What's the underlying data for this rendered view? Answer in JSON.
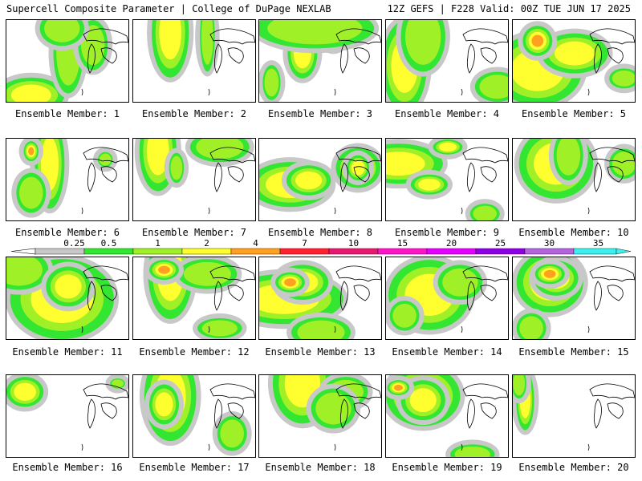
{
  "header": {
    "title": "Supercell Composite Parameter | College of DuPage NEXLAB",
    "run_info": "12Z GEFS | F228 Valid: 00Z TUE JUN 17 2025"
  },
  "legend": {
    "ticks": [
      "0.25",
      "0.5",
      "1",
      "2",
      "4",
      "7",
      "10",
      "15",
      "20",
      "25",
      "30",
      "35"
    ],
    "colors": [
      "#c8c8c8",
      "#32e632",
      "#a0f028",
      "#ffff30",
      "#ffa020",
      "#ff2030",
      "#e6196e",
      "#ff14c8",
      "#e600ff",
      "#8c00e6",
      "#b464dc",
      "#3cf0f0"
    ]
  },
  "members": [
    {
      "label": "Ensemble Member: 1"
    },
    {
      "label": "Ensemble Member: 2"
    },
    {
      "label": "Ensemble Member: 3"
    },
    {
      "label": "Ensemble Member: 4"
    },
    {
      "label": "Ensemble Member: 5"
    },
    {
      "label": "Ensemble Member: 6"
    },
    {
      "label": "Ensemble Member: 7"
    },
    {
      "label": "Ensemble Member: 8"
    },
    {
      "label": "Ensemble Member: 9"
    },
    {
      "label": "Ensemble Member: 10"
    },
    {
      "label": "Ensemble Member: 11"
    },
    {
      "label": "Ensemble Member: 12"
    },
    {
      "label": "Ensemble Member: 13"
    },
    {
      "label": "Ensemble Member: 14"
    },
    {
      "label": "Ensemble Member: 15"
    },
    {
      "label": "Ensemble Member: 16"
    },
    {
      "label": "Ensemble Member: 17"
    },
    {
      "label": "Ensemble Member: 18"
    },
    {
      "label": "Ensemble Member: 19"
    },
    {
      "label": "Ensemble Member: 20"
    }
  ]
}
